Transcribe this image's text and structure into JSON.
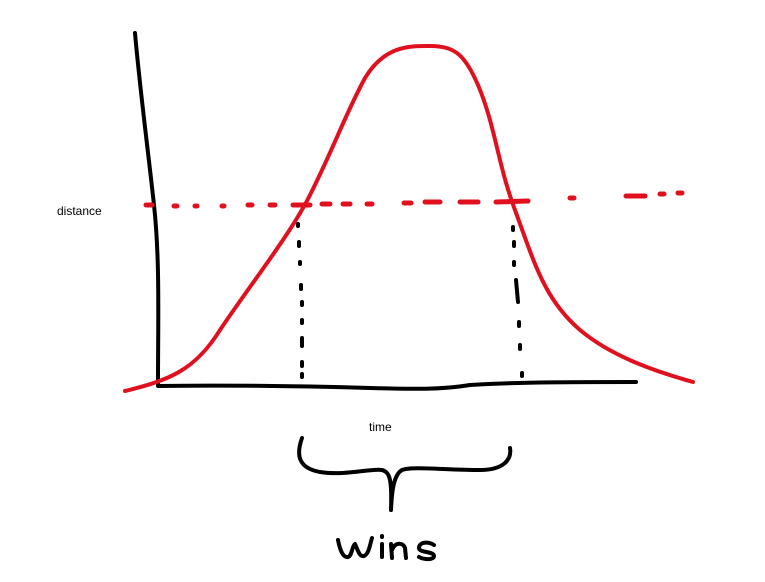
{
  "labels": {
    "y_axis": "distance",
    "x_axis": "time",
    "annotation": "wins"
  },
  "colors": {
    "axes": "#000000",
    "curve": "#e0101f",
    "threshold": "#e0101f",
    "drop_lines": "#000000",
    "brace": "#000000"
  }
}
